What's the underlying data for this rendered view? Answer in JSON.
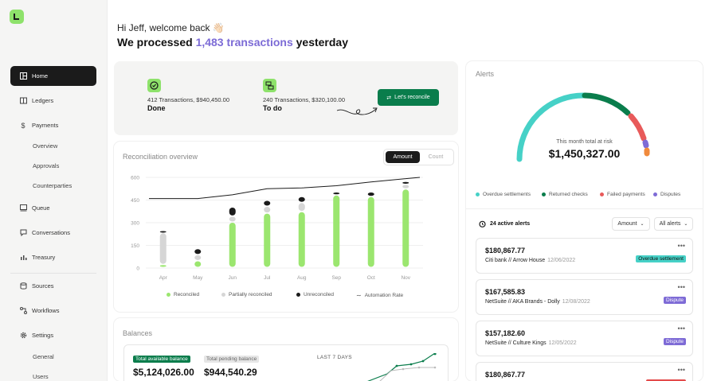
{
  "greeting": "Hi Jeff, welcome back 👋🏻",
  "headline": {
    "prefix": "We processed ",
    "highlight": "1,483 transactions",
    "suffix": " yesterday"
  },
  "sidebar": {
    "items": [
      {
        "label": "Home",
        "icon": "home-icon"
      },
      {
        "label": "Ledgers",
        "icon": "ledger-icon"
      },
      {
        "label": "Payments",
        "icon": "dollar-icon"
      },
      {
        "label": "Queue",
        "icon": "queue-icon"
      },
      {
        "label": "Conversations",
        "icon": "chat-icon"
      },
      {
        "label": "Treasury",
        "icon": "bar-chart-icon"
      },
      {
        "label": "Sources",
        "icon": "sources-icon"
      },
      {
        "label": "Workflows",
        "icon": "workflow-icon"
      },
      {
        "label": "Settings",
        "icon": "gear-icon"
      }
    ],
    "payments_sub": [
      "Overview",
      "Approvals",
      "Counterparties"
    ],
    "settings_sub": [
      "General",
      "Users"
    ]
  },
  "summary": {
    "done_line": "412 Transactions, $940,450.00",
    "done_label": "Done",
    "todo_line": "240 Transactions, $320,100.00",
    "todo_label": "To do",
    "reconcile_button": "Let's reconcile"
  },
  "reconciliation": {
    "title": "Reconciliation overview",
    "toggle": [
      "Amount",
      "Count"
    ],
    "legend": [
      "Reconciled",
      "Partially reconciled",
      "Unreconciled",
      "Automation Rate"
    ]
  },
  "chart_data": {
    "type": "bar",
    "categories": [
      "Apr",
      "May",
      "Jun",
      "Jul",
      "Aug",
      "Sep",
      "Oct",
      "Nov"
    ],
    "ylim": [
      0,
      600
    ],
    "yticks": [
      0,
      150,
      300,
      450,
      600
    ],
    "series": [
      {
        "name": "Reconciled",
        "values": [
          20,
          45,
          300,
          360,
          370,
          480,
          470,
          520
        ]
      },
      {
        "name": "Partially reconciled",
        "values": [
          210,
          40,
          40,
          45,
          60,
          0,
          0,
          30
        ]
      },
      {
        "name": "Unreconciled",
        "values": [
          15,
          40,
          60,
          40,
          40,
          20,
          30,
          20
        ]
      },
      {
        "name": "Automation Rate",
        "values": [
          460,
          460,
          485,
          525,
          530,
          545,
          570,
          600
        ]
      }
    ],
    "colors": {
      "Reconciled": "#9be66f",
      "Partially reconciled": "#d6d6d6",
      "Unreconciled": "#1b1b1b",
      "Automation Rate": "#1b1b1b"
    }
  },
  "balances": {
    "title": "Balances",
    "available_label": "Total available balance",
    "available_value": "$5,124,026.00",
    "pending_label": "Total pending balance",
    "pending_value": "$944,540.29",
    "period": "LAST 7 DAYS"
  },
  "alerts": {
    "title": "Alerts",
    "risk_label": "This month total at risk",
    "risk_value": "$1,450,327.00",
    "gauge_legend": [
      {
        "label": "Overdue settlements",
        "color": "#46d1c7"
      },
      {
        "label": "Returned checks",
        "color": "#0a7d4c"
      },
      {
        "label": "Failed payments",
        "color": "#e85a5a"
      },
      {
        "label": "Disputes",
        "color": "#7e6bd6"
      }
    ],
    "active_count": "24 active alerts",
    "sort_dropdown": "Amount",
    "filter_dropdown": "All alerts",
    "items": [
      {
        "amount": "$180,867.77",
        "source": "Citi bank // Arrow House",
        "date": "12/06/2022",
        "badge": "Overdue settlement"
      },
      {
        "amount": "$167,585.83",
        "source": "NetSuite // AKA Brands - Dolly",
        "date": "12/08/2022",
        "badge": "Dispute"
      },
      {
        "amount": "$157,182.60",
        "source": "NetSuite // Culture Kings",
        "date": "12/05/2022",
        "badge": "Dispute"
      },
      {
        "amount": "$180,867.77",
        "source": "",
        "date": "",
        "badge": ""
      }
    ]
  },
  "colors": {
    "accent_green": "#0a7d4c",
    "lime": "#8ee26b",
    "highlight_purple": "#7c6bd6"
  }
}
